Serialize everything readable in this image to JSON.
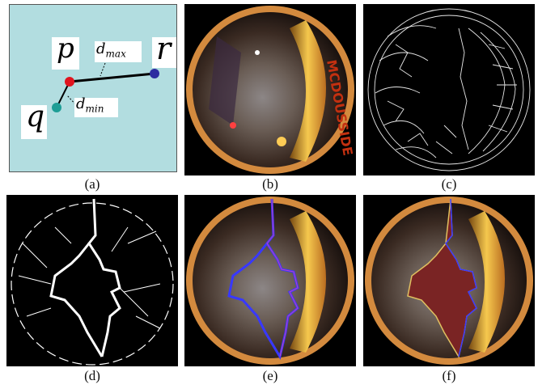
{
  "figure": {
    "panels": [
      {
        "id": "a",
        "caption": "(a)"
      },
      {
        "id": "b",
        "caption": "(b)"
      },
      {
        "id": "c",
        "caption": "(c)"
      },
      {
        "id": "d",
        "caption": "(d)"
      },
      {
        "id": "e",
        "caption": "(e)"
      },
      {
        "id": "f",
        "caption": "(f)"
      }
    ],
    "diagram": {
      "background_color": "#b2dde0",
      "point_p": {
        "label": "p",
        "color": "#e0141e"
      },
      "point_q": {
        "label": "q",
        "color": "#1e9e96"
      },
      "point_r": {
        "label": "r",
        "color": "#2c2ca0"
      },
      "d_max": {
        "base": "d",
        "sub": "max"
      },
      "d_min": {
        "base": "d",
        "sub": "min"
      }
    },
    "photo_sign_text": "MCDOUSSIDE"
  }
}
